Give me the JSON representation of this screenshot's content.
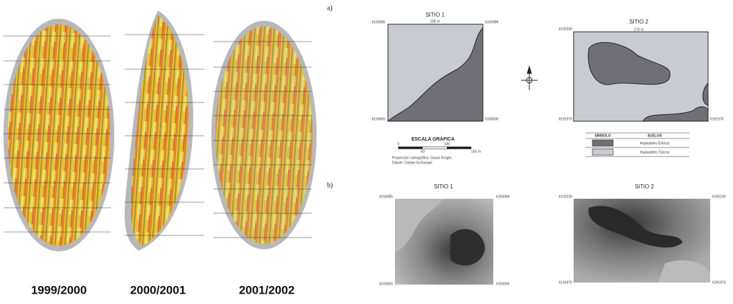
{
  "panels": {
    "labels": [
      "1999/2000",
      "2000/2001",
      "2001/2002"
    ]
  },
  "section_a": {
    "label": "a)",
    "site1": {
      "title": "SITIO 1",
      "width": "200 m",
      "top_left": "6156086",
      "top_right": "6156086",
      "bottom_left": "6155606",
      "bottom_right": "6155606"
    },
    "site2": {
      "title": "SITIO 2",
      "width": "275 m",
      "top_left": "6192330",
      "bottom_left": "6191970",
      "bottom_right": "6191970"
    }
  },
  "scale": {
    "title": "ESCALA GRÁFICA",
    "ticks": [
      "0",
      "50",
      "100",
      "150 m"
    ],
    "note": [
      "Proyección cartográfica: Gauss Krüger,",
      "Datum: Campo Inchauspe"
    ]
  },
  "legend": {
    "headers": [
      "SÍMBOLO",
      "SUELOS"
    ],
    "items": [
      "Hapludoles Énticos",
      "Hapludoles Típicos"
    ]
  },
  "section_b": {
    "label": "b)",
    "site1": {
      "title": "SITIO 1",
      "top_left": "6156085",
      "top_right": "6156086",
      "bottom_left": "6155565",
      "bottom_right": "6155566"
    },
    "site2": {
      "title": "SITIO 2",
      "top_left": "6192230",
      "top_right": "6192230",
      "bottom_left": "6191970",
      "bottom_right": "6191970"
    }
  }
}
